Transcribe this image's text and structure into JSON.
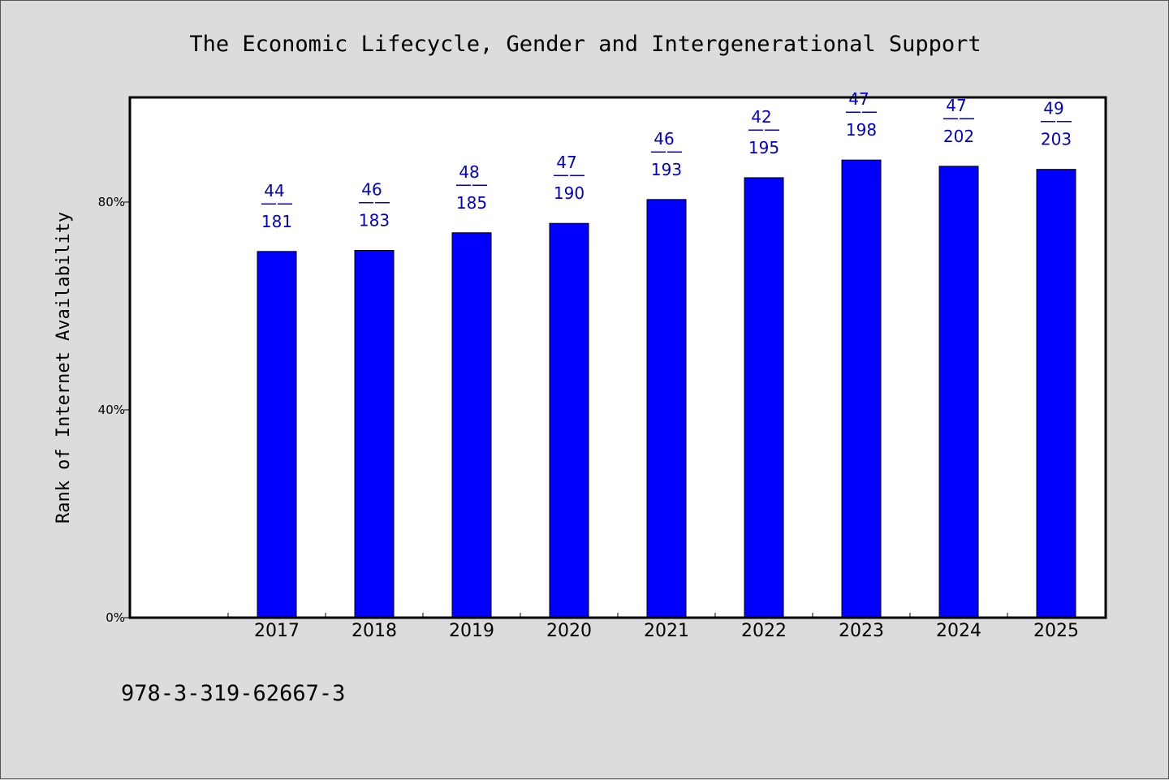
{
  "chart_data": {
    "type": "bar",
    "title": "The Economic Lifecycle, Gender and Intergenerational Support",
    "xlabel": "",
    "ylabel": "Rank of Internet Availability",
    "ylim": [
      0,
      100
    ],
    "yticks": [
      {
        "value": 0,
        "label": "0%"
      },
      {
        "value": 40,
        "label": "40%"
      },
      {
        "value": 80,
        "label": "80%"
      }
    ],
    "categories": [
      "2017",
      "2018",
      "2019",
      "2020",
      "2021",
      "2022",
      "2023",
      "2024",
      "2025"
    ],
    "values": [
      70.5,
      70.7,
      74.1,
      75.9,
      80.5,
      84.7,
      88.1,
      86.9,
      86.3
    ],
    "data_labels": [
      {
        "top": "44",
        "sep": "——",
        "bottom": "181"
      },
      {
        "top": "46",
        "sep": "——",
        "bottom": "183"
      },
      {
        "top": "48",
        "sep": "——",
        "bottom": "185"
      },
      {
        "top": "47",
        "sep": "——",
        "bottom": "190"
      },
      {
        "top": "46",
        "sep": "——",
        "bottom": "193"
      },
      {
        "top": "42",
        "sep": "——",
        "bottom": "195"
      },
      {
        "top": "47",
        "sep": "——",
        "bottom": "198"
      },
      {
        "top": "47",
        "sep": "——",
        "bottom": "202"
      },
      {
        "top": "49",
        "sep": "——",
        "bottom": "203"
      }
    ],
    "grid": false,
    "colors": {
      "bar": "#0000ff",
      "label": "#0000cc",
      "plot_bg": "#ffffff",
      "page_bg": "#dcdcdc"
    }
  },
  "footer": {
    "isbn": "978-3-319-62667-3"
  }
}
